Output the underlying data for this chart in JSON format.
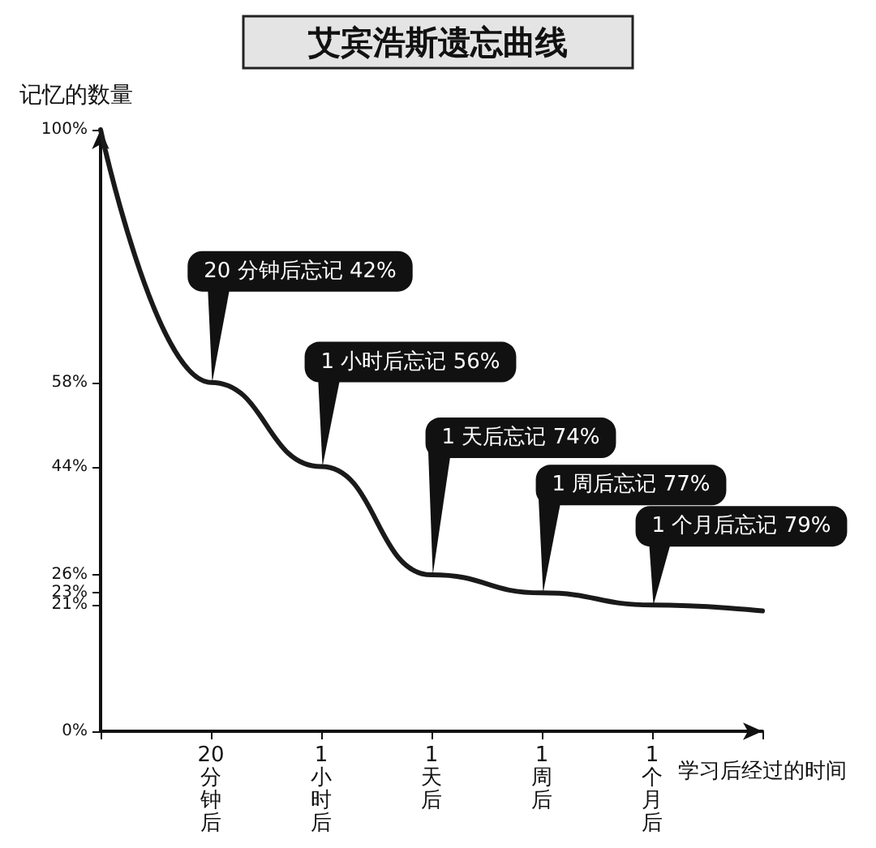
{
  "chart_data": {
    "type": "line",
    "title": "艾宾浩斯遗忘曲线",
    "ylabel": "记忆的数量",
    "xlabel": "学习后经过的时间",
    "categories": [
      null,
      "20分钟后",
      "1小时后",
      "1天后",
      "1周后",
      "1个月后",
      null
    ],
    "series": [
      {
        "color": "#1a1a1a",
        "values": [
          100,
          58,
          44,
          26,
          23,
          21,
          20
        ]
      }
    ],
    "ylim": [
      0,
      100
    ],
    "yticks": [
      {
        "value": 0,
        "label": "0%"
      },
      {
        "value": 21,
        "label": "21%"
      },
      {
        "value": 23,
        "label": "23%"
      },
      {
        "value": 26,
        "label": "26%"
      },
      {
        "value": 44,
        "label": "44%"
      },
      {
        "value": 58,
        "label": "58%"
      },
      {
        "value": 100,
        "label": "100%"
      }
    ],
    "annotations": [
      {
        "text": "20 分钟后忘记 42%",
        "x": "20分钟后",
        "y": 58
      },
      {
        "text": "1 小时后忘记 56%",
        "x": "1小时后",
        "y": 44
      },
      {
        "text": "1 天后忘记 74%",
        "x": "1天后",
        "y": 26
      },
      {
        "text": "1 周后忘记 77%",
        "x": "1周后",
        "y": 23
      },
      {
        "text": "1 个月后忘记 79%",
        "x": "1个月后",
        "y": 21
      }
    ],
    "grid": false,
    "marker": "none",
    "line_style": "solid"
  }
}
